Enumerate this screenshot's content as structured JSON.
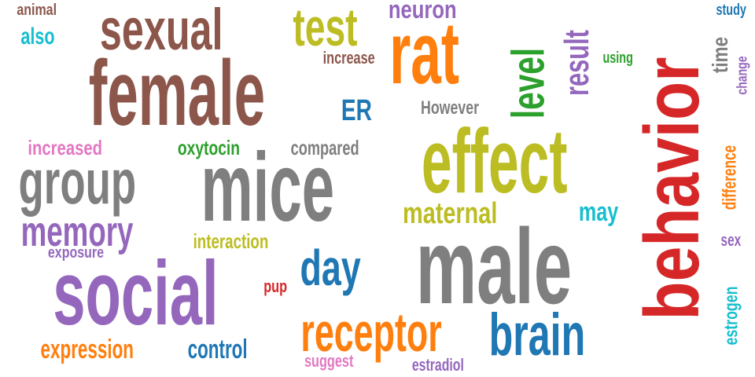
{
  "colors": {
    "brown": "#8c564b",
    "olive": "#bcbd22",
    "purple": "#9467bd",
    "orange": "#ff7f0e",
    "red": "#d62728",
    "gray": "#7f7f7f",
    "green": "#2ca02c",
    "blue": "#1f77b4",
    "cyan": "#17becf",
    "pink": "#e377c2"
  },
  "words": [
    {
      "key": "behavior",
      "text": "behavior",
      "color": "red",
      "orientation": "vertical"
    },
    {
      "key": "mice",
      "text": "mice",
      "color": "gray",
      "orientation": "horizontal"
    },
    {
      "key": "female",
      "text": "female",
      "color": "brown",
      "orientation": "horizontal"
    },
    {
      "key": "social",
      "text": "social",
      "color": "purple",
      "orientation": "horizontal"
    },
    {
      "key": "male",
      "text": "male",
      "color": "gray",
      "orientation": "horizontal"
    },
    {
      "key": "effect",
      "text": "effect",
      "color": "olive",
      "orientation": "horizontal"
    },
    {
      "key": "rat",
      "text": "rat",
      "color": "orange",
      "orientation": "horizontal"
    },
    {
      "key": "sexual",
      "text": "sexual",
      "color": "brown",
      "orientation": "horizontal"
    },
    {
      "key": "group",
      "text": "group",
      "color": "gray",
      "orientation": "horizontal"
    },
    {
      "key": "receptor",
      "text": "receptor",
      "color": "orange",
      "orientation": "horizontal"
    },
    {
      "key": "brain",
      "text": "brain",
      "color": "blue",
      "orientation": "horizontal"
    },
    {
      "key": "test",
      "text": "test",
      "color": "olive",
      "orientation": "horizontal"
    },
    {
      "key": "level",
      "text": "level",
      "color": "green",
      "orientation": "vertical"
    },
    {
      "key": "day",
      "text": "day",
      "color": "blue",
      "orientation": "horizontal"
    },
    {
      "key": "memory",
      "text": "memory",
      "color": "purple",
      "orientation": "horizontal"
    },
    {
      "key": "result",
      "text": "result",
      "color": "purple",
      "orientation": "vertical"
    },
    {
      "key": "maternal",
      "text": "maternal",
      "color": "olive",
      "orientation": "horizontal"
    },
    {
      "key": "expression",
      "text": "expression",
      "color": "orange",
      "orientation": "horizontal"
    },
    {
      "key": "ER",
      "text": "ER",
      "color": "blue",
      "orientation": "horizontal"
    },
    {
      "key": "control",
      "text": "control",
      "color": "blue",
      "orientation": "horizontal"
    },
    {
      "key": "neuron",
      "text": "neuron",
      "color": "purple",
      "orientation": "horizontal"
    },
    {
      "key": "may",
      "text": "may",
      "color": "cyan",
      "orientation": "horizontal"
    },
    {
      "key": "also",
      "text": "also",
      "color": "cyan",
      "orientation": "horizontal"
    },
    {
      "key": "time",
      "text": "time",
      "color": "gray",
      "orientation": "vertical"
    },
    {
      "key": "increased",
      "text": "increased",
      "color": "pink",
      "orientation": "horizontal"
    },
    {
      "key": "oxytocin",
      "text": "oxytocin",
      "color": "green",
      "orientation": "horizontal"
    },
    {
      "key": "compared",
      "text": "compared",
      "color": "gray",
      "orientation": "horizontal"
    },
    {
      "key": "interaction",
      "text": "interaction",
      "color": "olive",
      "orientation": "horizontal"
    },
    {
      "key": "difference",
      "text": "difference",
      "color": "orange",
      "orientation": "vertical"
    },
    {
      "key": "estrogen",
      "text": "estrogen",
      "color": "cyan",
      "orientation": "vertical"
    },
    {
      "key": "However",
      "text": "However",
      "color": "gray",
      "orientation": "horizontal"
    },
    {
      "key": "increase",
      "text": "increase",
      "color": "brown",
      "orientation": "horizontal"
    },
    {
      "key": "suggest",
      "text": "suggest",
      "color": "pink",
      "orientation": "horizontal"
    },
    {
      "key": "estradiol",
      "text": "estradiol",
      "color": "purple",
      "orientation": "horizontal"
    },
    {
      "key": "exposure",
      "text": "exposure",
      "color": "purple",
      "orientation": "horizontal"
    },
    {
      "key": "animal",
      "text": "animal",
      "color": "brown",
      "orientation": "horizontal"
    },
    {
      "key": "study",
      "text": "study",
      "color": "blue",
      "orientation": "horizontal"
    },
    {
      "key": "using",
      "text": "using",
      "color": "green",
      "orientation": "horizontal"
    },
    {
      "key": "change",
      "text": "change",
      "color": "purple",
      "orientation": "vertical"
    },
    {
      "key": "sex",
      "text": "sex",
      "color": "purple",
      "orientation": "horizontal"
    },
    {
      "key": "pup",
      "text": "pup",
      "color": "red",
      "orientation": "horizontal"
    }
  ]
}
